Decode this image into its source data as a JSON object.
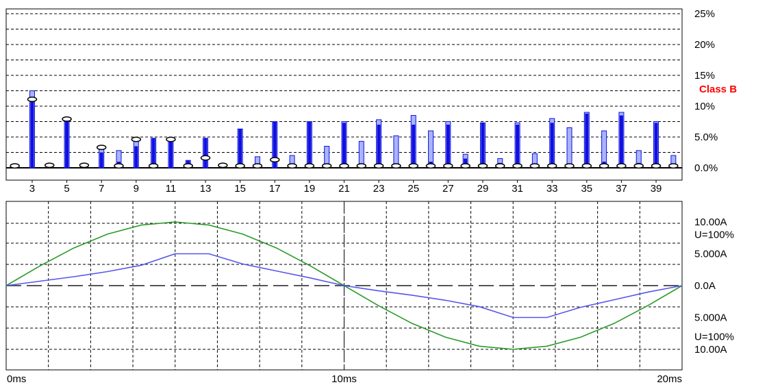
{
  "colors": {
    "measured_bar": "#1010e0",
    "limit_bar": "#a8b4ff",
    "marker": "#000000",
    "trace_blue": "#5555ee",
    "trace_green": "#2a9a2a",
    "class_label": "#ff0000",
    "grid": "#000000"
  },
  "chart_data": [
    {
      "type": "bar",
      "name": "harmonics",
      "ylim": [
        0,
        25
      ],
      "y_ticks": [
        {
          "value": 25,
          "label": "25%"
        },
        {
          "value": 20,
          "label": "20%"
        },
        {
          "value": 15,
          "label": "15%"
        },
        {
          "value": 10,
          "label": "10%"
        },
        {
          "value": 5,
          "label": "5.0%"
        },
        {
          "value": 0,
          "label": "0.0%"
        }
      ],
      "class_label": {
        "value": 12.8,
        "text": "Class B"
      },
      "harmonic_range": [
        2,
        40
      ],
      "x_tick_labels": [
        "3",
        "5",
        "7",
        "9",
        "11",
        "13",
        "15",
        "17",
        "19",
        "21",
        "23",
        "25",
        "27",
        "29",
        "31",
        "33",
        "35",
        "37",
        "39"
      ],
      "grid": true,
      "harmonics": [
        {
          "n": 2,
          "value": 0.2,
          "limit": 0.0,
          "marker": 0.2
        },
        {
          "n": 3,
          "value": 11.0,
          "limit": 12.5,
          "marker": 11.0
        },
        {
          "n": 4,
          "value": 0.3,
          "limit": 0.0,
          "marker": 0.3
        },
        {
          "n": 5,
          "value": 7.8,
          "limit": 7.8,
          "marker": 7.8
        },
        {
          "n": 6,
          "value": 0.3,
          "limit": 0.0,
          "marker": 0.3
        },
        {
          "n": 7,
          "value": 2.5,
          "limit": 3.2,
          "marker": 3.2
        },
        {
          "n": 8,
          "value": 1.0,
          "limit": 2.8,
          "marker": 0.2
        },
        {
          "n": 9,
          "value": 3.5,
          "limit": 4.5,
          "marker": 4.5
        },
        {
          "n": 10,
          "value": 4.8,
          "limit": 4.8,
          "marker": 0.2
        },
        {
          "n": 11,
          "value": 4.8,
          "limit": 4.8,
          "marker": 4.5
        },
        {
          "n": 12,
          "value": 1.2,
          "limit": 1.2,
          "marker": 0.2
        },
        {
          "n": 13,
          "value": 4.8,
          "limit": 4.8,
          "marker": 1.5
        },
        {
          "n": 14,
          "value": 0.3,
          "limit": 0.0,
          "marker": 0.3
        },
        {
          "n": 15,
          "value": 6.3,
          "limit": 6.3,
          "marker": 0.2
        },
        {
          "n": 16,
          "value": 0.3,
          "limit": 1.8,
          "marker": 0.2
        },
        {
          "n": 17,
          "value": 7.5,
          "limit": 7.5,
          "marker": 1.2
        },
        {
          "n": 18,
          "value": 0.3,
          "limit": 2.0,
          "marker": 0.2
        },
        {
          "n": 19,
          "value": 7.5,
          "limit": 7.5,
          "marker": 0.2
        },
        {
          "n": 20,
          "value": 0.3,
          "limit": 3.5,
          "marker": 0.2
        },
        {
          "n": 21,
          "value": 7.3,
          "limit": 7.5,
          "marker": 0.2
        },
        {
          "n": 22,
          "value": 0.3,
          "limit": 4.3,
          "marker": 0.2
        },
        {
          "n": 23,
          "value": 7.0,
          "limit": 7.8,
          "marker": 0.2
        },
        {
          "n": 24,
          "value": 0.3,
          "limit": 5.2,
          "marker": 0.2
        },
        {
          "n": 25,
          "value": 7.0,
          "limit": 8.5,
          "marker": 0.2
        },
        {
          "n": 26,
          "value": 1.0,
          "limit": 6.0,
          "marker": 0.2
        },
        {
          "n": 27,
          "value": 7.0,
          "limit": 7.5,
          "marker": 0.2
        },
        {
          "n": 28,
          "value": 1.5,
          "limit": 2.2,
          "marker": 0.2
        },
        {
          "n": 29,
          "value": 7.3,
          "limit": 7.3,
          "marker": 0.2
        },
        {
          "n": 30,
          "value": 0.8,
          "limit": 1.5,
          "marker": 0.2
        },
        {
          "n": 31,
          "value": 7.0,
          "limit": 7.3,
          "marker": 0.2
        },
        {
          "n": 32,
          "value": 0.5,
          "limit": 2.3,
          "marker": 0.2
        },
        {
          "n": 33,
          "value": 7.3,
          "limit": 8.0,
          "marker": 0.2
        },
        {
          "n": 34,
          "value": 0.5,
          "limit": 6.5,
          "marker": 0.2
        },
        {
          "n": 35,
          "value": 8.8,
          "limit": 9.0,
          "marker": 0.2
        },
        {
          "n": 36,
          "value": 1.0,
          "limit": 6.0,
          "marker": 0.2
        },
        {
          "n": 37,
          "value": 8.5,
          "limit": 9.0,
          "marker": 0.2
        },
        {
          "n": 38,
          "value": 0.8,
          "limit": 2.8,
          "marker": 0.2
        },
        {
          "n": 39,
          "value": 7.3,
          "limit": 7.5,
          "marker": 0.2
        },
        {
          "n": 40,
          "value": 0.5,
          "limit": 2.0,
          "marker": 0.2
        }
      ]
    },
    {
      "type": "line",
      "name": "waveform",
      "xlim": [
        0,
        20
      ],
      "x_ticks": [
        {
          "value": 0,
          "label": "0ms"
        },
        {
          "value": 10,
          "label": "10ms"
        },
        {
          "value": 20,
          "label": "20ms"
        }
      ],
      "ylim": [
        -10,
        10
      ],
      "y_labels": [
        {
          "value": 10.0,
          "label": "10.00A"
        },
        {
          "value": 8.0,
          "label": "U=100%"
        },
        {
          "value": 5.0,
          "label": "5.000A"
        },
        {
          "value": 0.0,
          "label": "0.0A"
        },
        {
          "value": -5.0,
          "label": "5.000A"
        },
        {
          "value": -8.0,
          "label": "U=100%"
        },
        {
          "value": -10.0,
          "label": "10.00A"
        }
      ],
      "grid": true,
      "series": [
        {
          "color_key": "trace_green",
          "x": [
            0,
            1,
            2,
            3,
            4,
            5,
            6,
            7,
            8,
            9,
            10,
            11,
            12,
            13,
            14,
            15,
            16,
            17,
            18,
            19,
            20
          ],
          "y": [
            0,
            3.1,
            5.9,
            8.1,
            9.5,
            10.0,
            9.5,
            8.1,
            5.9,
            3.1,
            0,
            -3.1,
            -5.9,
            -8.1,
            -9.5,
            -10.0,
            -9.5,
            -8.1,
            -5.9,
            -3.1,
            0
          ]
        },
        {
          "color_key": "trace_blue",
          "x": [
            0,
            1,
            2,
            3,
            4,
            5,
            6,
            7,
            8,
            9,
            10,
            11,
            12,
            13,
            14,
            15,
            16,
            17,
            18,
            19,
            20
          ],
          "y": [
            0,
            0.7,
            1.4,
            2.2,
            3.2,
            5.0,
            5.0,
            3.4,
            2.3,
            1.2,
            0,
            -0.8,
            -1.5,
            -2.3,
            -3.3,
            -5.0,
            -5.0,
            -3.4,
            -2.2,
            -1.0,
            0
          ]
        }
      ]
    }
  ]
}
